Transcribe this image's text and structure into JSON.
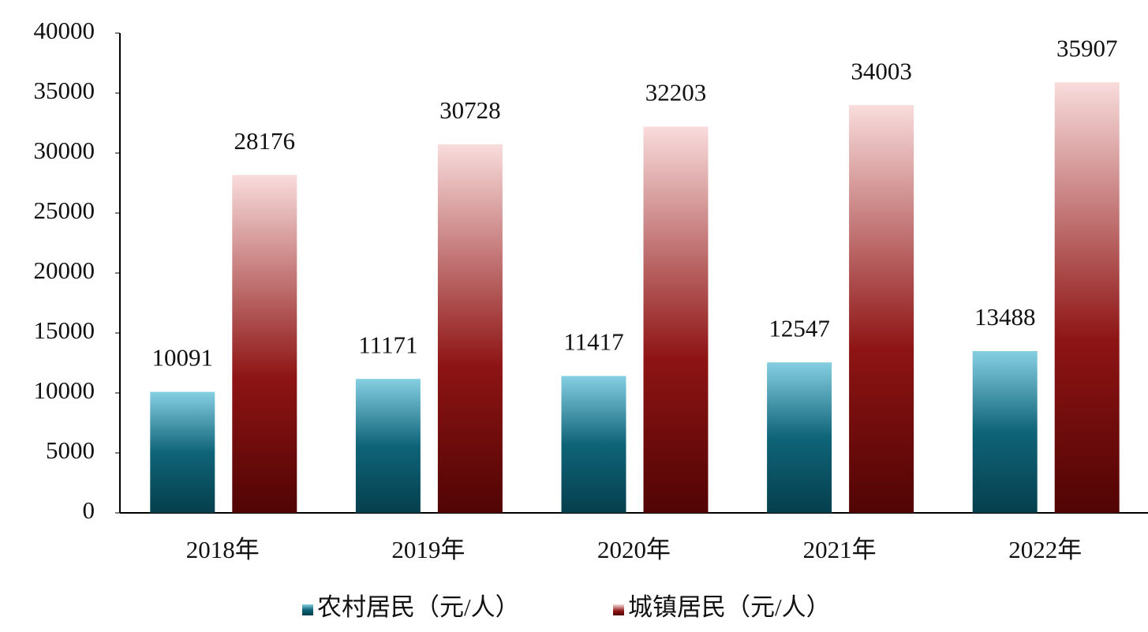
{
  "chart_data": {
    "type": "bar",
    "categories": [
      "2018年",
      "2019年",
      "2020年",
      "2021年",
      "2022年"
    ],
    "series": [
      {
        "name": "农村居民（元/人）",
        "color": "#0f6478",
        "values": [
          10091,
          11171,
          11417,
          12547,
          13488
        ]
      },
      {
        "name": "城镇居民（元/人）",
        "color": "#8e1414",
        "values": [
          28176,
          30728,
          32203,
          34003,
          35907
        ]
      }
    ],
    "ylim": [
      0,
      40000
    ],
    "yticks": [
      0,
      5000,
      10000,
      15000,
      20000,
      25000,
      30000,
      35000,
      40000
    ],
    "grid": false,
    "legend": "bottom"
  }
}
